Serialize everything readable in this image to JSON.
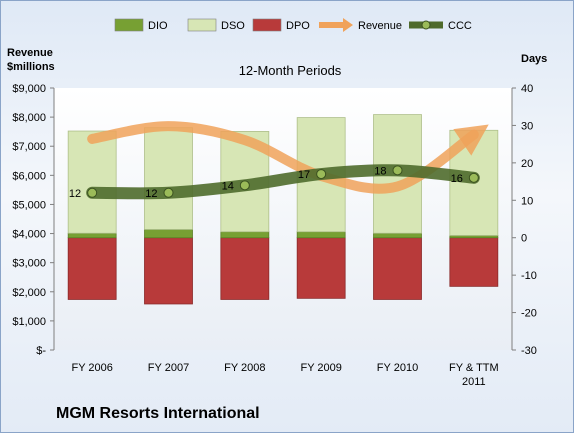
{
  "chart_data": {
    "type": "bar",
    "title": "12-Month Periods",
    "company": "MGM Resorts International",
    "y_left_label": [
      "Revenue",
      "$millions"
    ],
    "y_right_label": "Days",
    "categories": [
      [
        "FY 2006"
      ],
      [
        "FY 2007"
      ],
      [
        "FY 2008"
      ],
      [
        "FY 2009"
      ],
      [
        "FY 2010"
      ],
      [
        "FY & TTM",
        "2011"
      ]
    ],
    "y_left_ticks": [
      "$-",
      "$1,000",
      "$2,000",
      "$3,000",
      "$4,000",
      "$5,000",
      "$6,000",
      "$7,000",
      "$8,000",
      "$9,000"
    ],
    "y_left_range": [
      0,
      9000
    ],
    "y_right_ticks": [
      "-30",
      "-20",
      "-10",
      "0",
      "10",
      "20",
      "30",
      "40"
    ],
    "y_right_range": [
      -30,
      40
    ],
    "grid": false,
    "legend_position": "top",
    "series": [
      {
        "name": "DIO",
        "kind": "stacked_bar_up",
        "color": "#77a033",
        "values": [
          1.2,
          2.2,
          1.6,
          1.6,
          1.2,
          0.6
        ]
      },
      {
        "name": "DSO",
        "kind": "stacked_bar_up",
        "color": "#d7e6b5",
        "values": [
          27.3,
          27.2,
          26.8,
          30.5,
          31.7,
          28.1
        ]
      },
      {
        "name": "DPO",
        "kind": "bar_down",
        "color": "#b83a3a",
        "values": [
          -16.5,
          -17.7,
          -16.5,
          -16.2,
          -16.5,
          -13.0
        ]
      },
      {
        "name": "Revenue",
        "kind": "line",
        "axis": "left",
        "color": "#f0a25a",
        "values": [
          7250,
          7690,
          7210,
          5980,
          5620,
          7400
        ]
      },
      {
        "name": "CCC",
        "kind": "line",
        "axis": "right",
        "color": "#4f6b2c",
        "values": [
          12,
          12,
          14,
          17,
          18,
          16
        ],
        "labels": [
          "12",
          "12",
          "14",
          "17",
          "18",
          "16"
        ]
      }
    ]
  }
}
